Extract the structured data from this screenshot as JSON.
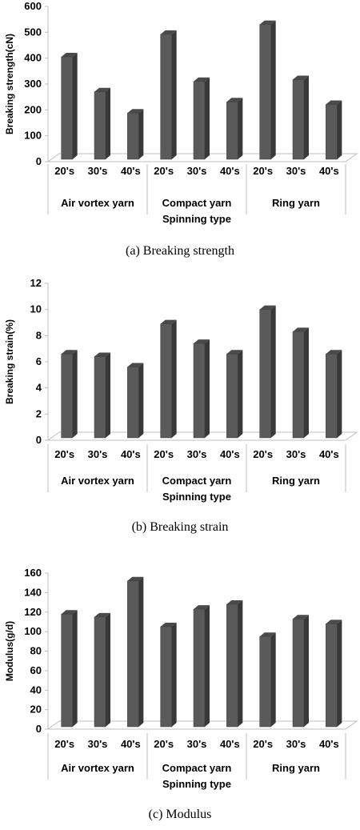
{
  "chart_data": [
    {
      "type": "bar",
      "caption": "(a)  Breaking  strength",
      "ylabel": "Breaking strength(cN)",
      "xlabel": "Spinning type",
      "ylim": [
        0,
        600
      ],
      "yticks": [
        0,
        100,
        200,
        300,
        400,
        500,
        600
      ],
      "groups": [
        "Air vortex yarn",
        "Compact yarn",
        "Ring yarn"
      ],
      "categories": [
        "20's",
        "30's",
        "40's"
      ],
      "values": [
        [
          405,
          270,
          188
        ],
        [
          492,
          310,
          231
        ],
        [
          530,
          317,
          221
        ]
      ],
      "bar_color": "#5a5a5a",
      "grid": false
    },
    {
      "type": "bar",
      "caption": "(b)  Breaking  strain",
      "ylabel": "Breaking strain(%)",
      "xlabel": "Spinning type",
      "ylim": [
        0,
        12
      ],
      "yticks": [
        0,
        2,
        4,
        6,
        8,
        10,
        12
      ],
      "groups": [
        "Air vortex yarn",
        "Compact yarn",
        "Ring yarn"
      ],
      "categories": [
        "20's",
        "30's",
        "40's"
      ],
      "values": [
        [
          6.6,
          6.4,
          5.6
        ],
        [
          8.9,
          7.4,
          6.6
        ],
        [
          10.0,
          8.3,
          6.6
        ]
      ],
      "bar_color": "#5a5a5a",
      "grid": false
    },
    {
      "type": "bar",
      "caption": "(c)  Modulus",
      "ylabel": "Modulus(g/d)",
      "xlabel": "Spinning type",
      "ylim": [
        0,
        160
      ],
      "yticks": [
        0,
        20,
        40,
        60,
        80,
        100,
        120,
        140,
        160
      ],
      "groups": [
        "Air vortex yarn",
        "Compact yarn",
        "Ring yarn"
      ],
      "categories": [
        "20's",
        "30's",
        "40's"
      ],
      "values": [
        [
          118,
          115,
          152
        ],
        [
          105,
          123,
          128
        ],
        [
          95,
          113,
          108
        ]
      ],
      "bar_color": "#5a5a5a",
      "grid": false
    }
  ]
}
